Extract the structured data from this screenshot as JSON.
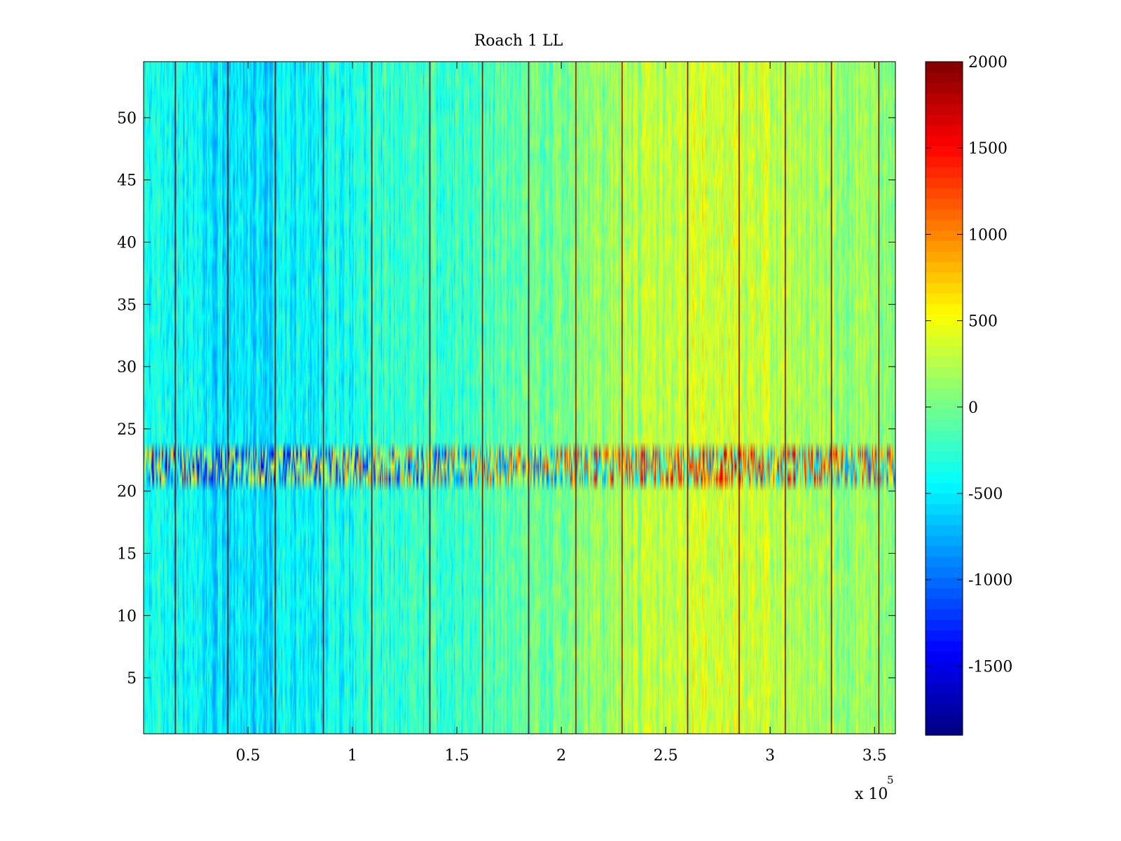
{
  "chart_data": {
    "type": "heatmap",
    "title": "Roach 1 LL",
    "xlabel": "",
    "ylabel": "",
    "x_exponent_label": "x 10",
    "x_exponent_power": "5",
    "xlim": [
      0,
      3.6
    ],
    "ylim": [
      0.5,
      54.5
    ],
    "x_ticks": [
      0.5,
      1,
      1.5,
      2,
      2.5,
      3,
      3.5
    ],
    "x_tick_labels": [
      "0.5",
      "1",
      "1.5",
      "2",
      "2.5",
      "3",
      "3.5"
    ],
    "y_ticks": [
      5,
      10,
      15,
      20,
      25,
      30,
      35,
      40,
      45,
      50
    ],
    "y_tick_labels": [
      "5",
      "10",
      "15",
      "20",
      "25",
      "30",
      "35",
      "40",
      "45",
      "50"
    ],
    "rows": 54,
    "colorbar": {
      "colormap": "jet",
      "clim": [
        -1900,
        2000
      ],
      "ticks": [
        2000,
        1500,
        1000,
        500,
        0,
        -500,
        -1000,
        -1500
      ],
      "tick_labels": [
        "2000",
        "1500",
        "1000",
        "500",
        "0",
        "-500",
        "-1000",
        "-1500"
      ]
    },
    "spike_columns_x": [
      0.15,
      0.4,
      0.63,
      0.86,
      1.09,
      1.37,
      1.62,
      1.84,
      2.07,
      2.29,
      2.6,
      2.85,
      3.07,
      3.29,
      3.52
    ],
    "noisy_band_rows": [
      21,
      22,
      23
    ],
    "column_profile": {
      "x": [
        0.0,
        0.3,
        0.6,
        0.9,
        1.2,
        1.5,
        1.8,
        2.1,
        2.4,
        2.7,
        3.0,
        3.3,
        3.6
      ],
      "mean_value": [
        -350,
        -500,
        -550,
        -380,
        -250,
        -220,
        -100,
        80,
        250,
        380,
        300,
        150,
        100
      ]
    },
    "grid": false,
    "legend": "none"
  }
}
